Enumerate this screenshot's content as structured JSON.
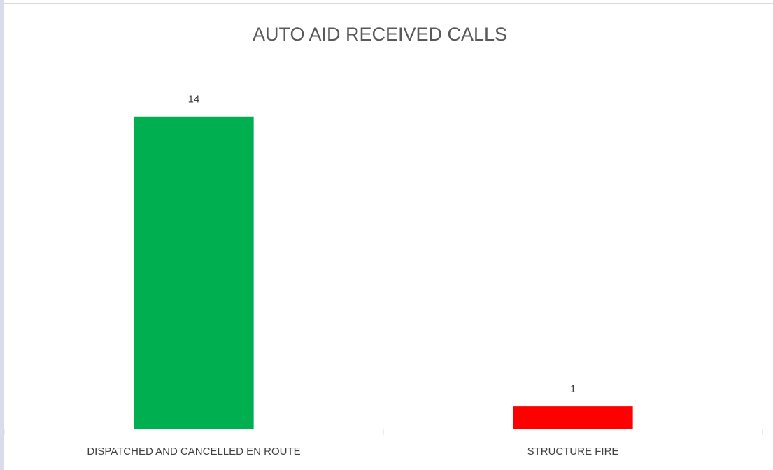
{
  "chart_data": {
    "type": "bar",
    "title": "AUTO AID RECEIVED CALLS",
    "categories": [
      "DISPATCHED AND CANCELLED EN ROUTE",
      "STRUCTURE FIRE"
    ],
    "values": [
      14,
      1
    ],
    "colors": [
      "#00b050",
      "#ff0000"
    ],
    "ylim": [
      0,
      16
    ]
  }
}
